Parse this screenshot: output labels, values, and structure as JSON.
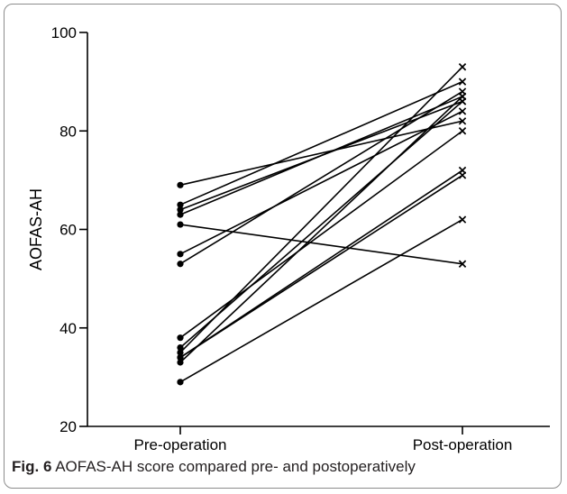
{
  "chart_data": {
    "type": "line",
    "ylabel": "AOFAS-AH",
    "categories": [
      "Pre-operation",
      "Post-operation"
    ],
    "ylim": [
      20,
      100
    ],
    "yticks": [
      20,
      40,
      60,
      80,
      100
    ],
    "grid": false,
    "pairs": [
      [
        69,
        82
      ],
      [
        65,
        90
      ],
      [
        64,
        86
      ],
      [
        63,
        87
      ],
      [
        61,
        53
      ],
      [
        55,
        84
      ],
      [
        53,
        88
      ],
      [
        38,
        80
      ],
      [
        36,
        86
      ],
      [
        35,
        93
      ],
      [
        34,
        72
      ],
      [
        33,
        87
      ],
      [
        34,
        71
      ],
      [
        29,
        62
      ]
    ],
    "marker_pre": "circle",
    "marker_post": "x",
    "line_color": "#000000"
  },
  "caption": {
    "label": "Fig. 6",
    "text": "AOFAS-AH score compared pre- and postoperatively"
  }
}
